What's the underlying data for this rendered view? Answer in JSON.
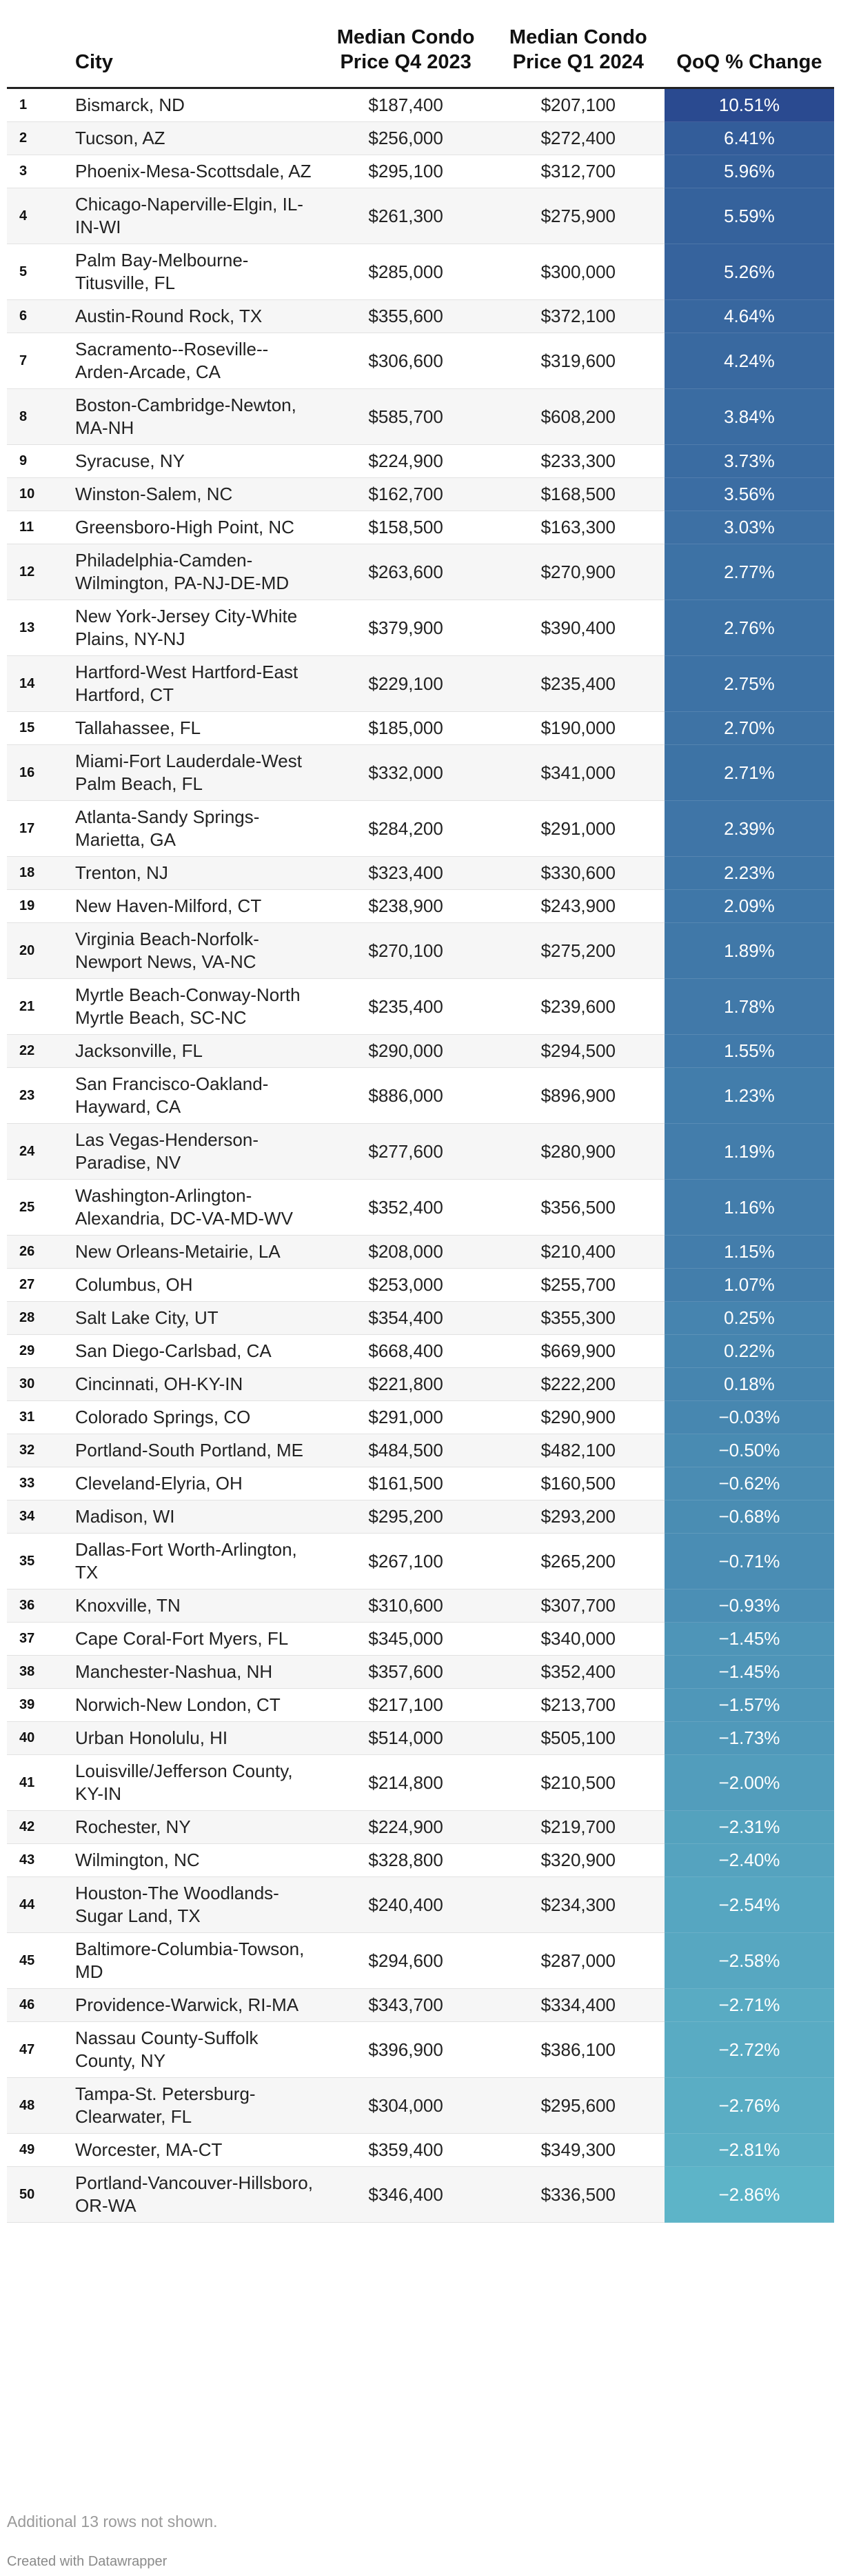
{
  "chart_data": {
    "type": "table",
    "columns": [
      "",
      "City",
      "Median Condo Price Q4 2023",
      "Median Condo Price Q1 2024",
      "QoQ % Change"
    ],
    "header": {
      "rank": "",
      "city": "City",
      "q4_2023": "Median Condo Price Q4 2023",
      "q1_2024": "Median Condo Price Q1 2024",
      "qoq_change": "QoQ % Change"
    },
    "color_scale": {
      "high_color": "#2a4a90",
      "low_color": "#5db4c8",
      "domain": [
        -2.86,
        10.51
      ]
    },
    "rows": [
      {
        "rank": "1",
        "city": "Bismarck, ND",
        "q4": "$187,400",
        "q1": "$207,100",
        "change": "10.51%",
        "change_value": 10.51
      },
      {
        "rank": "2",
        "city": "Tucson, AZ",
        "q4": "$256,000",
        "q1": "$272,400",
        "change": "6.41%",
        "change_value": 6.41
      },
      {
        "rank": "3",
        "city": "Phoenix-Mesa-Scottsdale, AZ",
        "q4": "$295,100",
        "q1": "$312,700",
        "change": "5.96%",
        "change_value": 5.96
      },
      {
        "rank": "4",
        "city": "Chicago-Naperville-Elgin, IL-IN-WI",
        "q4": "$261,300",
        "q1": "$275,900",
        "change": "5.59%",
        "change_value": 5.59
      },
      {
        "rank": "5",
        "city": "Palm Bay-Melbourne-Titusville, FL",
        "q4": "$285,000",
        "q1": "$300,000",
        "change": "5.26%",
        "change_value": 5.26
      },
      {
        "rank": "6",
        "city": "Austin-Round Rock, TX",
        "q4": "$355,600",
        "q1": "$372,100",
        "change": "4.64%",
        "change_value": 4.64
      },
      {
        "rank": "7",
        "city": "Sacramento--Roseville--Arden-Arcade, CA",
        "q4": "$306,600",
        "q1": "$319,600",
        "change": "4.24%",
        "change_value": 4.24
      },
      {
        "rank": "8",
        "city": "Boston-Cambridge-Newton, MA-NH",
        "q4": "$585,700",
        "q1": "$608,200",
        "change": "3.84%",
        "change_value": 3.84
      },
      {
        "rank": "9",
        "city": "Syracuse, NY",
        "q4": "$224,900",
        "q1": "$233,300",
        "change": "3.73%",
        "change_value": 3.73
      },
      {
        "rank": "10",
        "city": "Winston-Salem, NC",
        "q4": "$162,700",
        "q1": "$168,500",
        "change": "3.56%",
        "change_value": 3.56
      },
      {
        "rank": "11",
        "city": "Greensboro-High Point, NC",
        "q4": "$158,500",
        "q1": "$163,300",
        "change": "3.03%",
        "change_value": 3.03
      },
      {
        "rank": "12",
        "city": "Philadelphia-Camden-Wilmington, PA-NJ-DE-MD",
        "q4": "$263,600",
        "q1": "$270,900",
        "change": "2.77%",
        "change_value": 2.77
      },
      {
        "rank": "13",
        "city": "New York-Jersey City-White Plains, NY-NJ",
        "q4": "$379,900",
        "q1": "$390,400",
        "change": "2.76%",
        "change_value": 2.76
      },
      {
        "rank": "14",
        "city": "Hartford-West Hartford-East Hartford, CT",
        "q4": "$229,100",
        "q1": "$235,400",
        "change": "2.75%",
        "change_value": 2.75
      },
      {
        "rank": "15",
        "city": "Tallahassee, FL",
        "q4": "$185,000",
        "q1": "$190,000",
        "change": "2.70%",
        "change_value": 2.7
      },
      {
        "rank": "16",
        "city": "Miami-Fort Lauderdale-West Palm Beach, FL",
        "q4": "$332,000",
        "q1": "$341,000",
        "change": "2.71%",
        "change_value": 2.71
      },
      {
        "rank": "17",
        "city": "Atlanta-Sandy Springs-Marietta, GA",
        "q4": "$284,200",
        "q1": "$291,000",
        "change": "2.39%",
        "change_value": 2.39
      },
      {
        "rank": "18",
        "city": "Trenton, NJ",
        "q4": "$323,400",
        "q1": "$330,600",
        "change": "2.23%",
        "change_value": 2.23
      },
      {
        "rank": "19",
        "city": "New Haven-Milford, CT",
        "q4": "$238,900",
        "q1": "$243,900",
        "change": "2.09%",
        "change_value": 2.09
      },
      {
        "rank": "20",
        "city": "Virginia Beach-Norfolk-Newport News, VA-NC",
        "q4": "$270,100",
        "q1": "$275,200",
        "change": "1.89%",
        "change_value": 1.89
      },
      {
        "rank": "21",
        "city": "Myrtle Beach-Conway-North Myrtle Beach, SC-NC",
        "q4": "$235,400",
        "q1": "$239,600",
        "change": "1.78%",
        "change_value": 1.78
      },
      {
        "rank": "22",
        "city": "Jacksonville, FL",
        "q4": "$290,000",
        "q1": "$294,500",
        "change": "1.55%",
        "change_value": 1.55
      },
      {
        "rank": "23",
        "city": "San Francisco-Oakland-Hayward, CA",
        "q4": "$886,000",
        "q1": "$896,900",
        "change": "1.23%",
        "change_value": 1.23
      },
      {
        "rank": "24",
        "city": "Las Vegas-Henderson-Paradise, NV",
        "q4": "$277,600",
        "q1": "$280,900",
        "change": "1.19%",
        "change_value": 1.19
      },
      {
        "rank": "25",
        "city": "Washington-Arlington-Alexandria, DC-VA-MD-WV",
        "q4": "$352,400",
        "q1": "$356,500",
        "change": "1.16%",
        "change_value": 1.16
      },
      {
        "rank": "26",
        "city": "New Orleans-Metairie, LA",
        "q4": "$208,000",
        "q1": "$210,400",
        "change": "1.15%",
        "change_value": 1.15
      },
      {
        "rank": "27",
        "city": "Columbus, OH",
        "q4": "$253,000",
        "q1": "$255,700",
        "change": "1.07%",
        "change_value": 1.07
      },
      {
        "rank": "28",
        "city": "Salt Lake City, UT",
        "q4": "$354,400",
        "q1": "$355,300",
        "change": "0.25%",
        "change_value": 0.25
      },
      {
        "rank": "29",
        "city": "San Diego-Carlsbad, CA",
        "q4": "$668,400",
        "q1": "$669,900",
        "change": "0.22%",
        "change_value": 0.22
      },
      {
        "rank": "30",
        "city": "Cincinnati, OH-KY-IN",
        "q4": "$221,800",
        "q1": "$222,200",
        "change": "0.18%",
        "change_value": 0.18
      },
      {
        "rank": "31",
        "city": "Colorado Springs, CO",
        "q4": "$291,000",
        "q1": "$290,900",
        "change": "−0.03%",
        "change_value": -0.03
      },
      {
        "rank": "32",
        "city": "Portland-South Portland, ME",
        "q4": "$484,500",
        "q1": "$482,100",
        "change": "−0.50%",
        "change_value": -0.5
      },
      {
        "rank": "33",
        "city": "Cleveland-Elyria, OH",
        "q4": "$161,500",
        "q1": "$160,500",
        "change": "−0.62%",
        "change_value": -0.62
      },
      {
        "rank": "34",
        "city": "Madison, WI",
        "q4": "$295,200",
        "q1": "$293,200",
        "change": "−0.68%",
        "change_value": -0.68
      },
      {
        "rank": "35",
        "city": "Dallas-Fort Worth-Arlington, TX",
        "q4": "$267,100",
        "q1": "$265,200",
        "change": "−0.71%",
        "change_value": -0.71
      },
      {
        "rank": "36",
        "city": "Knoxville, TN",
        "q4": "$310,600",
        "q1": "$307,700",
        "change": "−0.93%",
        "change_value": -0.93
      },
      {
        "rank": "37",
        "city": "Cape Coral-Fort Myers, FL",
        "q4": "$345,000",
        "q1": "$340,000",
        "change": "−1.45%",
        "change_value": -1.45
      },
      {
        "rank": "38",
        "city": "Manchester-Nashua, NH",
        "q4": "$357,600",
        "q1": "$352,400",
        "change": "−1.45%",
        "change_value": -1.45
      },
      {
        "rank": "39",
        "city": "Norwich-New London, CT",
        "q4": "$217,100",
        "q1": "$213,700",
        "change": "−1.57%",
        "change_value": -1.57
      },
      {
        "rank": "40",
        "city": "Urban Honolulu, HI",
        "q4": "$514,000",
        "q1": "$505,100",
        "change": "−1.73%",
        "change_value": -1.73
      },
      {
        "rank": "41",
        "city": "Louisville/Jefferson County, KY-IN",
        "q4": "$214,800",
        "q1": "$210,500",
        "change": "−2.00%",
        "change_value": -2.0
      },
      {
        "rank": "42",
        "city": "Rochester, NY",
        "q4": "$224,900",
        "q1": "$219,700",
        "change": "−2.31%",
        "change_value": -2.31
      },
      {
        "rank": "43",
        "city": "Wilmington, NC",
        "q4": "$328,800",
        "q1": "$320,900",
        "change": "−2.40%",
        "change_value": -2.4
      },
      {
        "rank": "44",
        "city": "Houston-The Woodlands-Sugar Land, TX",
        "q4": "$240,400",
        "q1": "$234,300",
        "change": "−2.54%",
        "change_value": -2.54
      },
      {
        "rank": "45",
        "city": "Baltimore-Columbia-Towson, MD",
        "q4": "$294,600",
        "q1": "$287,000",
        "change": "−2.58%",
        "change_value": -2.58
      },
      {
        "rank": "46",
        "city": "Providence-Warwick, RI-MA",
        "q4": "$343,700",
        "q1": "$334,400",
        "change": "−2.71%",
        "change_value": -2.71
      },
      {
        "rank": "47",
        "city": "Nassau County-Suffolk County, NY",
        "q4": "$396,900",
        "q1": "$386,100",
        "change": "−2.72%",
        "change_value": -2.72
      },
      {
        "rank": "48",
        "city": "Tampa-St. Petersburg-Clearwater, FL",
        "q4": "$304,000",
        "q1": "$295,600",
        "change": "−2.76%",
        "change_value": -2.76
      },
      {
        "rank": "49",
        "city": "Worcester, MA-CT",
        "q4": "$359,400",
        "q1": "$349,300",
        "change": "−2.81%",
        "change_value": -2.81
      },
      {
        "rank": "50",
        "city": "Portland-Vancouver-Hillsboro, OR-WA",
        "q4": "$346,400",
        "q1": "$336,500",
        "change": "−2.86%",
        "change_value": -2.86
      }
    ],
    "footnote": "Additional 13 rows not shown.",
    "credit": "Created with Datawrapper"
  }
}
